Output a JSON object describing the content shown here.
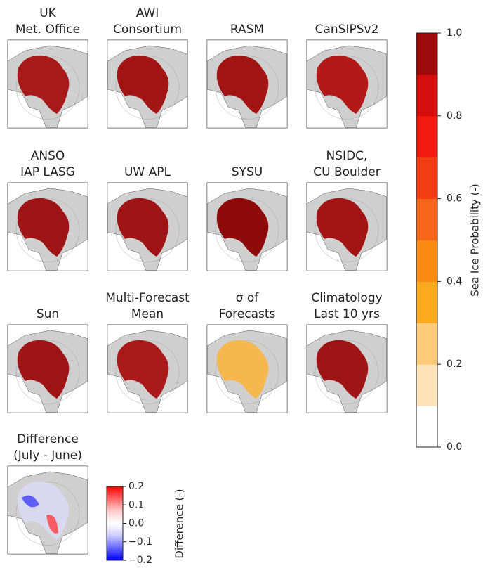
{
  "panels": [
    {
      "title": [
        "UK",
        "Met. Office"
      ],
      "color": "#a50f0f"
    },
    {
      "title": [
        "AWI",
        "Consortium"
      ],
      "color": "#a00a0a"
    },
    {
      "title": [
        "RASM"
      ],
      "color": "#a00a0a"
    },
    {
      "title": [
        "CanSIPSv2"
      ],
      "color": "#b01010"
    },
    {
      "title": [
        "ANSO",
        "IAP LASG"
      ],
      "color": "#9c0a0a"
    },
    {
      "title": [
        "UW APL"
      ],
      "color": "#9c0a0a"
    },
    {
      "title": [
        "SYSU"
      ],
      "color": "#8b0000"
    },
    {
      "title": [
        "NSIDC,",
        "CU Boulder"
      ],
      "color": "#a00a0a"
    },
    {
      "title": [
        "Sun"
      ],
      "color": "#9c0a0a"
    },
    {
      "title": [
        "Multi-Forecast",
        "Mean"
      ],
      "color": "#a81010"
    },
    {
      "title": [
        "σ of",
        "Forecasts"
      ],
      "color": "#f7b547"
    },
    {
      "title": [
        "Climatology",
        "Last 10 yrs"
      ],
      "color": "#9c0a0a"
    },
    {
      "title": [
        "Difference",
        "(July - June)"
      ],
      "color": "#d8d8f0"
    }
  ],
  "probability_colorbar": {
    "label": "Sea Ice Probability (-)",
    "lim": [
      0,
      1
    ],
    "ticks": [
      {
        "value": 0,
        "label": "0.0"
      },
      0.2,
      0.4,
      0.6,
      0.8,
      {
        "value": 1,
        "label": "1.0"
      }
    ],
    "colors": [
      "#ffffff",
      "#fde3b8",
      "#fdca7a",
      "#fbaa1e",
      "#f98a12",
      "#f5661a",
      "#f23c12",
      "#f11a0f",
      "#d40d0d",
      "#9c0a0a"
    ]
  },
  "difference_colorbar": {
    "label": "Difference (-)",
    "lim": [
      -0.2,
      0.2
    ],
    "ticks": [
      {
        "value": -0.2,
        "label": "−0.2"
      },
      {
        "value": -0.1,
        "label": "−0.1"
      },
      {
        "value": 0,
        "label": "0.0"
      },
      0.1,
      0.2
    ],
    "colors": [
      "#0000ff",
      "#6666ff",
      "#ccccff",
      "#ffffff",
      "#ffcccc",
      "#ff6666",
      "#ff0000"
    ]
  }
}
